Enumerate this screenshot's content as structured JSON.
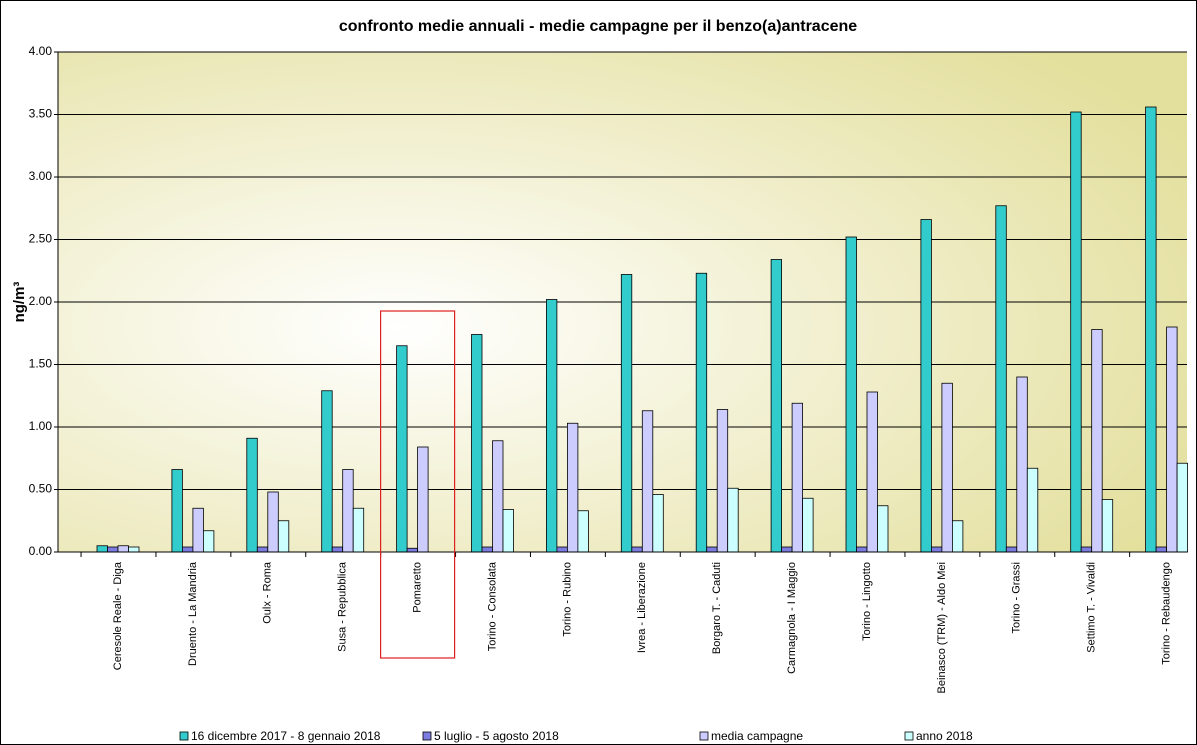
{
  "chart_data": {
    "type": "bar",
    "title": "confronto medie annuali - medie campagne per il benzo(a)antracene",
    "y_label": "ng/m³",
    "categories": [
      "Ceresole Reale - Diga",
      "Druento - La Mandria",
      "Oulx - Roma",
      "Susa - Repubblica",
      "Pomaretto",
      "Torino - Consolata",
      "Torino - Rubino",
      "Ivrea - Liberazione",
      "Borgaro T. - Caduti",
      "Carmagnola - I Maggio",
      "Torino - Lingotto",
      "Beinasco (TRM) - Aldo Mei",
      "Torino - Grassi",
      "Settimo T. - Vivaldi",
      "Torino - Rebaudengo"
    ],
    "series": [
      {
        "name": "16 dicembre 2017 - 8 gennaio 2018",
        "color": "#33CCCC",
        "values": [
          0.05,
          0.66,
          0.91,
          1.29,
          1.65,
          1.74,
          2.02,
          2.22,
          2.23,
          2.34,
          2.52,
          2.66,
          2.77,
          3.52,
          3.56
        ]
      },
      {
        "name": "5 luglio - 5 agosto 2018",
        "color": "#7B7BE0",
        "values": [
          0.04,
          0.04,
          0.04,
          0.04,
          0.03,
          0.04,
          0.04,
          0.04,
          0.04,
          0.04,
          0.04,
          0.04,
          0.04,
          0.04,
          0.04
        ]
      },
      {
        "name": "media campagne",
        "color": "#CCCCFF",
        "values": [
          0.05,
          0.35,
          0.48,
          0.66,
          0.84,
          0.89,
          1.03,
          1.13,
          1.14,
          1.19,
          1.28,
          1.35,
          1.4,
          1.78,
          1.8
        ]
      },
      {
        "name": "anno 2018",
        "color": "#CCFFFF",
        "values": [
          0.04,
          0.17,
          0.25,
          0.35,
          null,
          0.34,
          0.33,
          0.46,
          0.51,
          0.43,
          0.37,
          0.25,
          0.67,
          0.42,
          0.71
        ]
      }
    ],
    "ylim": [
      0,
      4
    ],
    "yticks": [
      {
        "value": 0,
        "label": "0.00"
      },
      {
        "value": 0.5,
        "label": "0.50"
      },
      {
        "value": 1,
        "label": "1.00"
      },
      {
        "value": 1.5,
        "label": "1.50"
      },
      {
        "value": 2,
        "label": "2.00"
      },
      {
        "value": 2.5,
        "label": "2.50"
      },
      {
        "value": 3,
        "label": "3.00"
      },
      {
        "value": 3.5,
        "label": "3.50"
      },
      {
        "value": 4,
        "label": "4.00"
      }
    ],
    "grid": true
  }
}
